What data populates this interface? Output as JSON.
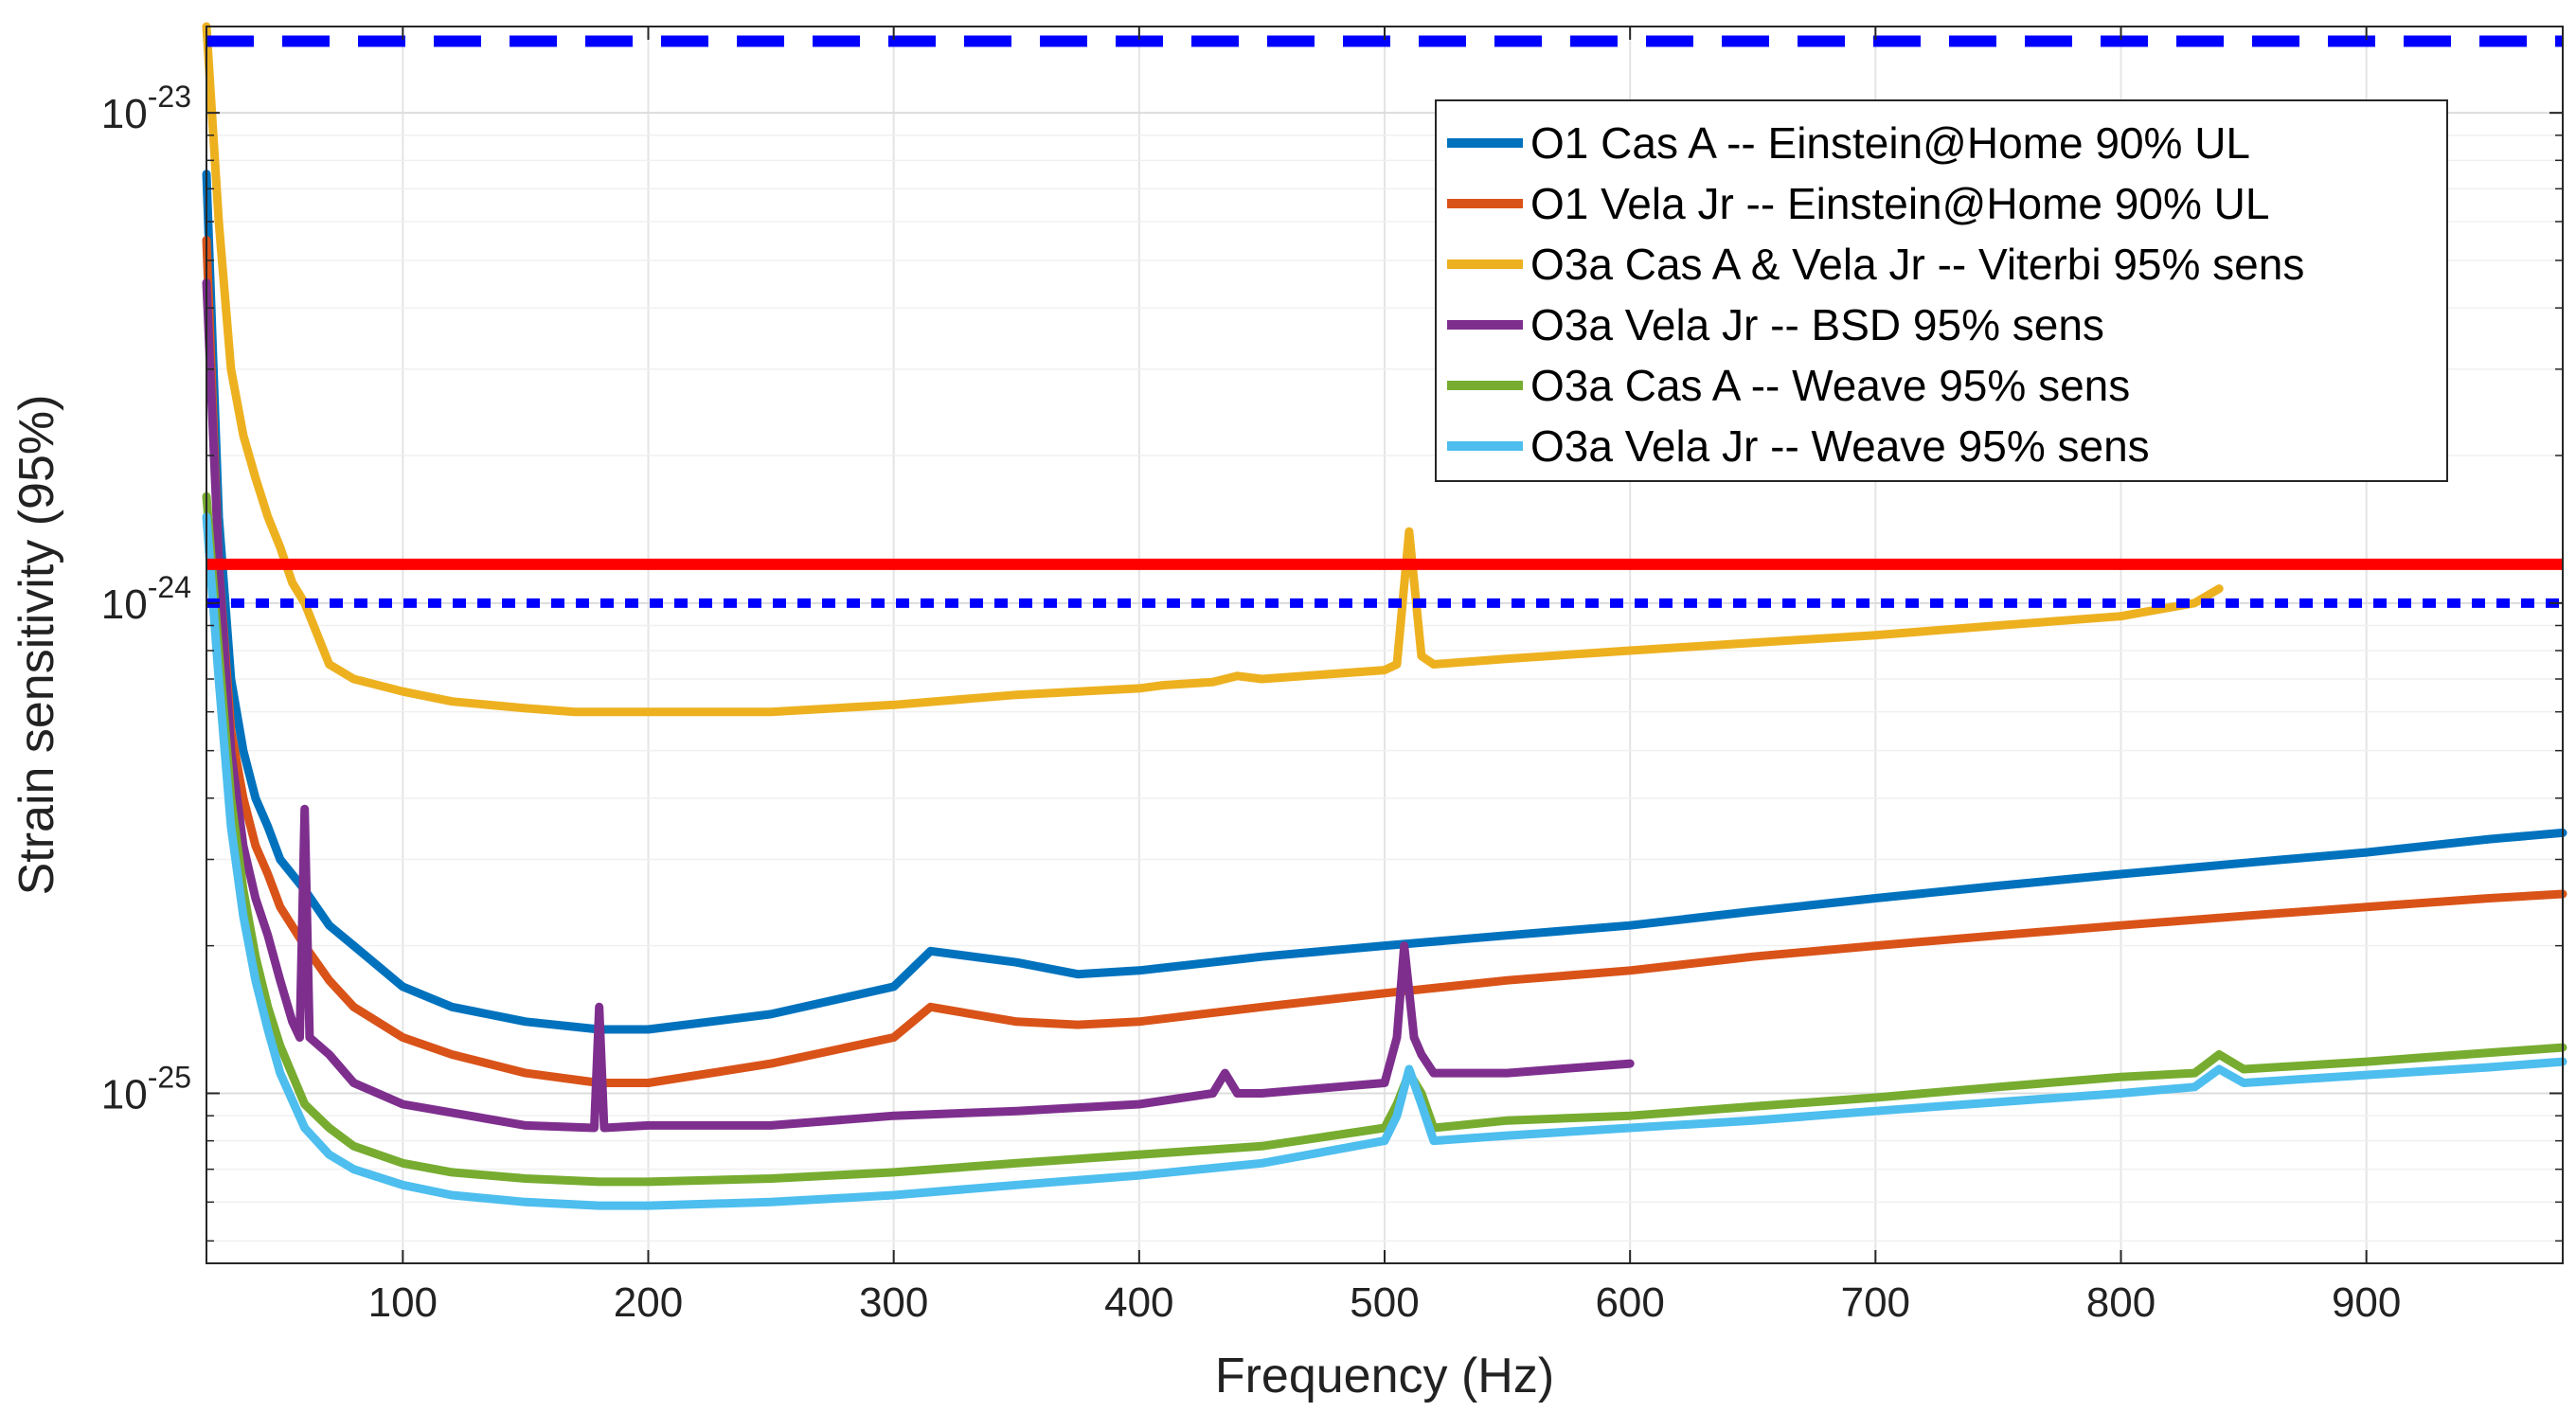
{
  "chart_data": {
    "type": "line",
    "title": "",
    "xlabel": "Frequency (Hz)",
    "ylabel": "Strain sensitivity (95%)",
    "xscale": "linear",
    "yscale": "log",
    "xlim": [
      20,
      980
    ],
    "ylim": [
      4.5e-26,
      1.5e-23
    ],
    "grid": true,
    "legend_position": "top-right",
    "x_ticks": [
      100,
      200,
      300,
      400,
      500,
      600,
      700,
      800,
      900
    ],
    "x_tick_labels": [
      "100",
      "200",
      "300",
      "400",
      "500",
      "600",
      "700",
      "800",
      "900"
    ],
    "y_ticks": [
      {
        "value": 1e-25,
        "base": "10",
        "exp": "-25"
      },
      {
        "value": 1e-24,
        "base": "10",
        "exp": "-24"
      },
      {
        "value": 1e-23,
        "base": "10",
        "exp": "-23"
      }
    ],
    "series": [
      {
        "name": "O1 Cas A -- Einstein@Home 90% UL",
        "color": "#0072BD",
        "x": [
          20,
          25,
          30,
          35,
          40,
          45,
          50,
          60,
          70,
          80,
          100,
          120,
          150,
          180,
          200,
          250,
          300,
          315,
          350,
          375,
          400,
          450,
          500,
          550,
          600,
          650,
          700,
          750,
          800,
          850,
          900,
          950,
          980
        ],
        "y": [
          7.5e-24,
          1.5e-24,
          7e-25,
          5e-25,
          4e-25,
          3.5e-25,
          3e-25,
          2.6e-25,
          2.2e-25,
          2e-25,
          1.65e-25,
          1.5e-25,
          1.4e-25,
          1.35e-25,
          1.35e-25,
          1.45e-25,
          1.65e-25,
          1.95e-25,
          1.85e-25,
          1.75e-25,
          1.78e-25,
          1.9e-25,
          2e-25,
          2.1e-25,
          2.2e-25,
          2.35e-25,
          2.5e-25,
          2.65e-25,
          2.8e-25,
          2.95e-25,
          3.1e-25,
          3.3e-25,
          3.4e-25
        ]
      },
      {
        "name": "O1 Vela Jr -- Einstein@Home 90% UL",
        "color": "#D95319",
        "x": [
          20,
          25,
          30,
          35,
          40,
          45,
          50,
          60,
          70,
          80,
          100,
          120,
          150,
          180,
          200,
          250,
          300,
          315,
          350,
          375,
          400,
          450,
          500,
          550,
          600,
          650,
          700,
          750,
          800,
          850,
          900,
          950,
          980
        ],
        "y": [
          5.5e-24,
          1.2e-24,
          5.5e-25,
          4e-25,
          3.2e-25,
          2.8e-25,
          2.4e-25,
          2e-25,
          1.7e-25,
          1.5e-25,
          1.3e-25,
          1.2e-25,
          1.1e-25,
          1.05e-25,
          1.05e-25,
          1.15e-25,
          1.3e-25,
          1.5e-25,
          1.4e-25,
          1.38e-25,
          1.4e-25,
          1.5e-25,
          1.6e-25,
          1.7e-25,
          1.78e-25,
          1.9e-25,
          2e-25,
          2.1e-25,
          2.2e-25,
          2.3e-25,
          2.4e-25,
          2.5e-25,
          2.55e-25
        ]
      },
      {
        "name": "O3a Cas A & Vela Jr -- Viterbi 95% sens",
        "color": "#EDB120",
        "x": [
          20,
          25,
          30,
          35,
          40,
          45,
          50,
          55,
          60,
          70,
          80,
          100,
          120,
          150,
          170,
          200,
          250,
          300,
          350,
          400,
          410,
          430,
          435,
          440,
          450,
          500,
          505,
          510,
          515,
          520,
          550,
          600,
          650,
          700,
          750,
          800,
          830,
          840
        ],
        "y": [
          1.5e-23,
          6e-24,
          3e-24,
          2.2e-24,
          1.8e-24,
          1.5e-24,
          1.3e-24,
          1.1e-24,
          1e-24,
          7.5e-25,
          7e-25,
          6.6e-25,
          6.3e-25,
          6.1e-25,
          6e-25,
          6e-25,
          6e-25,
          6.2e-25,
          6.5e-25,
          6.7e-25,
          6.8e-25,
          6.9e-25,
          7e-25,
          7.1e-25,
          7e-25,
          7.3e-25,
          7.5e-25,
          1.4e-24,
          7.8e-25,
          7.5e-25,
          7.7e-25,
          8e-25,
          8.3e-25,
          8.6e-25,
          9e-25,
          9.4e-25,
          1e-24,
          1.07e-24
        ]
      },
      {
        "name": "O3a Vela Jr -- BSD 95% sens",
        "color": "#7E2F8E",
        "x": [
          20,
          25,
          30,
          35,
          40,
          45,
          50,
          55,
          58,
          60,
          62,
          70,
          80,
          100,
          150,
          178,
          180,
          182,
          200,
          250,
          300,
          350,
          400,
          430,
          435,
          440,
          450,
          500,
          505,
          508,
          512,
          515,
          520,
          550,
          600
        ],
        "y": [
          4.5e-24,
          1.2e-24,
          5e-25,
          3.2e-25,
          2.5e-25,
          2.1e-25,
          1.7e-25,
          1.4e-25,
          1.3e-25,
          3.8e-25,
          1.3e-25,
          1.2e-25,
          1.05e-25,
          9.5e-26,
          8.6e-26,
          8.5e-26,
          1.5e-25,
          8.5e-26,
          8.6e-26,
          8.6e-26,
          9e-26,
          9.2e-26,
          9.5e-26,
          1e-25,
          1.1e-25,
          1e-25,
          1e-25,
          1.05e-25,
          1.3e-25,
          2e-25,
          1.3e-25,
          1.2e-25,
          1.1e-25,
          1.1e-25,
          1.15e-25
        ]
      },
      {
        "name": "O3a Cas A -- Weave 95% sens",
        "color": "#77AC30",
        "x": [
          20,
          25,
          30,
          35,
          40,
          45,
          50,
          60,
          70,
          80,
          100,
          120,
          150,
          180,
          200,
          250,
          300,
          350,
          400,
          450,
          500,
          505,
          510,
          515,
          520,
          550,
          600,
          650,
          700,
          750,
          800,
          830,
          840,
          850,
          900,
          950,
          980
        ],
        "y": [
          1.65e-24,
          8e-25,
          4e-25,
          2.6e-25,
          1.9e-25,
          1.5e-25,
          1.25e-25,
          9.5e-26,
          8.5e-26,
          7.8e-26,
          7.2e-26,
          6.9e-26,
          6.7e-26,
          6.6e-26,
          6.6e-26,
          6.7e-26,
          6.9e-26,
          7.2e-26,
          7.5e-26,
          7.8e-26,
          8.5e-26,
          9.5e-26,
          1.1e-25,
          1e-25,
          8.5e-26,
          8.8e-26,
          9e-26,
          9.4e-26,
          9.8e-26,
          1.03e-25,
          1.08e-25,
          1.1e-25,
          1.2e-25,
          1.12e-25,
          1.16e-25,
          1.21e-25,
          1.24e-25
        ]
      },
      {
        "name": "O3a Vela Jr -- Weave 95% sens",
        "color": "#4DBEEE",
        "x": [
          20,
          25,
          30,
          35,
          40,
          45,
          50,
          60,
          70,
          80,
          100,
          120,
          150,
          180,
          200,
          250,
          300,
          350,
          400,
          450,
          500,
          505,
          510,
          515,
          520,
          550,
          600,
          650,
          700,
          750,
          800,
          830,
          840,
          850,
          900,
          950,
          980
        ],
        "y": [
          1.5e-24,
          7e-25,
          3.5e-25,
          2.3e-25,
          1.7e-25,
          1.35e-25,
          1.1e-25,
          8.5e-26,
          7.5e-26,
          7e-26,
          6.5e-26,
          6.2e-26,
          6e-26,
          5.9e-26,
          5.9e-26,
          6e-26,
          6.2e-26,
          6.5e-26,
          6.8e-26,
          7.2e-26,
          8e-26,
          9e-26,
          1.12e-25,
          9.5e-26,
          8e-26,
          8.2e-26,
          8.5e-26,
          8.8e-26,
          9.2e-26,
          9.6e-26,
          1e-25,
          1.03e-25,
          1.12e-25,
          1.05e-25,
          1.09e-25,
          1.13e-25,
          1.16e-25
        ]
      }
    ],
    "reference_lines": [
      {
        "name": "blue-dashed-line",
        "value": 1.4e-23,
        "color": "#0000FF",
        "style": "dashed"
      },
      {
        "name": "red-solid-line",
        "value": 1.2e-24,
        "color": "#FF0000",
        "style": "solid"
      },
      {
        "name": "blue-dotted-line",
        "value": 1e-24,
        "color": "#0000FF",
        "style": "dotted"
      }
    ]
  }
}
